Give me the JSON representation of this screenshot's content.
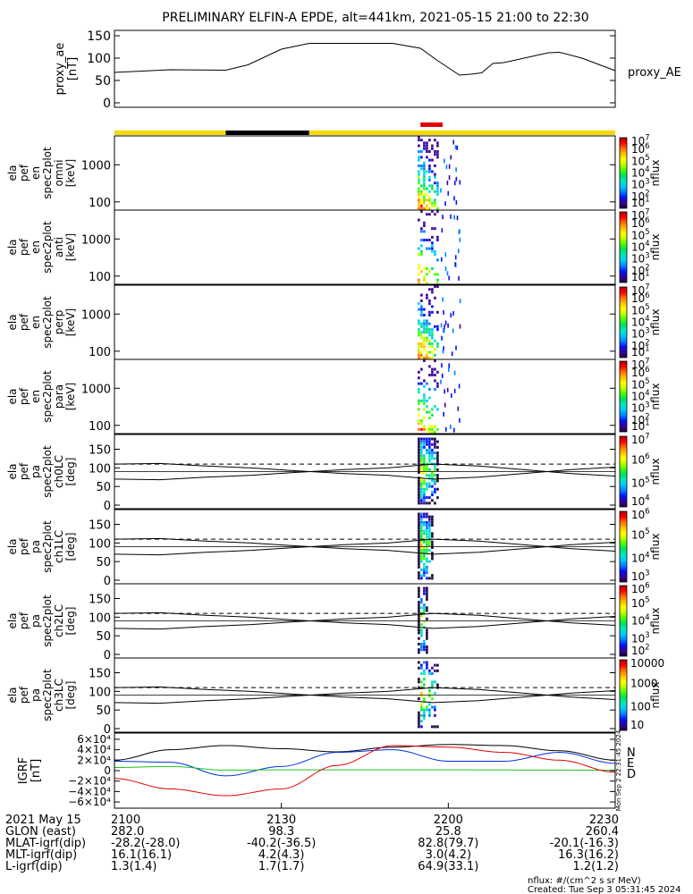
{
  "title": "PRELIMINARY ELFIN-A EPDE, alt=441km, 2021-05-15 21:00 to 22:30",
  "colors": {
    "yellow_bar": "#f5d800",
    "black_bar": "#000000",
    "red_marker": "#e00000",
    "line": "#000000",
    "N": "#0030e0",
    "E": "#20c020",
    "D": "#e00000"
  },
  "colormap": [
    "#1a003a",
    "#3a009a",
    "#0010ff",
    "#0080ff",
    "#00c8ff",
    "#00e8c0",
    "#00e060",
    "#40ff00",
    "#c0ff00",
    "#ffff00",
    "#ffc000",
    "#ff7000",
    "#ff0000",
    "#b00000"
  ],
  "footer": {
    "labels": [
      "2021 May 15",
      "GLON (east)",
      "MLAT-igrf(dip)",
      "MLT-igrf(dip)",
      "L-igrf(dip)"
    ],
    "times": [
      "2100",
      "2130",
      "2200",
      "2230"
    ],
    "glon": [
      "282.0",
      "98.3",
      "25.8",
      "260.4"
    ],
    "mlat": [
      "-28.2(-28.0)",
      "-40.2(-36.5)",
      "82.8(79.7)",
      "-20.1(-16.3)"
    ],
    "mlt": [
      "16.1(16.1)",
      "4.2(4.3)",
      "3.0(4.2)",
      "16.3(16.2)"
    ],
    "lshell": [
      "1.3(1.4)",
      "1.7(1.7)",
      "64.9(33.1)",
      "1.2(1.2)"
    ],
    "units_note": "nflux: #/(cm^2 s sr MeV)",
    "created": "Created: Tue Sep  3 05:31:45 2024",
    "side_stamp": "Mon Sep  2 22:31:45 2024"
  },
  "chart_data": [
    {
      "type": "line",
      "panel": "proxy_ae",
      "ylabel": [
        "proxy_ae",
        "[nT]"
      ],
      "legend": "proxy_AE",
      "ylim": [
        0,
        150
      ],
      "yticks": [
        0,
        50,
        100,
        150
      ],
      "x_minutes": [
        0,
        10,
        20,
        24,
        30,
        35,
        50,
        55,
        58,
        62,
        64,
        66,
        68,
        70,
        78,
        80,
        84,
        90
      ],
      "values": [
        68,
        74,
        73,
        85,
        120,
        133,
        133,
        122,
        95,
        62,
        64,
        67,
        88,
        90,
        112,
        113,
        100,
        72
      ]
    },
    {
      "type": "bar",
      "panel": "status_bar",
      "segments": [
        {
          "from": 0,
          "to": 20,
          "color": "yellow"
        },
        {
          "from": 20,
          "to": 35,
          "color": "black"
        },
        {
          "from": 35,
          "to": 90,
          "color": "yellow"
        }
      ],
      "marker": {
        "from": 55,
        "to": 59,
        "color": "red"
      }
    },
    {
      "type": "heatmap",
      "panel": "omni",
      "ylabel": [
        "ela",
        "pef",
        "en",
        "spec2plot",
        "omni",
        "[keV]"
      ],
      "y_scale": "log",
      "ylim": [
        60,
        6000
      ],
      "yticks": [
        100,
        1000
      ],
      "ytick_labels": [
        "100",
        "1000"
      ],
      "colorbar": {
        "label": "nflux",
        "ticks": [
          "10",
          "10",
          "10",
          "10",
          "10",
          "10",
          "10"
        ],
        "exponents": [
          "1",
          "2",
          "3",
          "4",
          "5",
          "6",
          "7"
        ]
      },
      "burst_minutes": [
        54.5,
        58.5
      ]
    },
    {
      "type": "heatmap",
      "panel": "anti",
      "ylabel": [
        "ela",
        "pef",
        "en",
        "spec2plot",
        "anti",
        "[keV]"
      ],
      "y_scale": "log",
      "ylim": [
        60,
        6000
      ],
      "yticks": [
        100,
        1000
      ],
      "ytick_labels": [
        "100",
        "1000"
      ],
      "colorbar": {
        "label": "nflux",
        "ticks": [
          "10",
          "10",
          "10",
          "10",
          "10",
          "10",
          "10"
        ],
        "exponents": [
          "1",
          "2",
          "3",
          "4",
          "5",
          "6",
          "7"
        ]
      },
      "burst_minutes": [
        54.5,
        58.5
      ]
    },
    {
      "type": "heatmap",
      "panel": "perp",
      "ylabel": [
        "ela",
        "pef",
        "en",
        "spec2plot",
        "perp",
        "[keV]"
      ],
      "y_scale": "log",
      "ylim": [
        60,
        6000
      ],
      "yticks": [
        100,
        1000
      ],
      "ytick_labels": [
        "100",
        "1000"
      ],
      "colorbar": {
        "label": "nflux",
        "ticks": [
          "10",
          "10",
          "10",
          "10",
          "10",
          "10",
          "10"
        ],
        "exponents": [
          "1",
          "2",
          "3",
          "4",
          "5",
          "6",
          "7"
        ]
      },
      "burst_minutes": [
        54.5,
        58.5
      ]
    },
    {
      "type": "heatmap",
      "panel": "para",
      "ylabel": [
        "ela",
        "pef",
        "en",
        "spec2plot",
        "para",
        "[keV]"
      ],
      "y_scale": "log",
      "ylim": [
        60,
        6000
      ],
      "yticks": [
        100,
        1000
      ],
      "ytick_labels": [
        "100",
        "1000"
      ],
      "colorbar": {
        "label": "nflux",
        "ticks": [
          "10",
          "10",
          "10",
          "10",
          "10",
          "10",
          "10"
        ],
        "exponents": [
          "1",
          "2",
          "3",
          "4",
          "5",
          "6",
          "7"
        ]
      },
      "burst_minutes": [
        54.5,
        58.5
      ]
    },
    {
      "type": "heatmap",
      "panel": "ch0LC",
      "ylabel": [
        "ela",
        "pef",
        "pa",
        "spec2plot",
        "ch0LC",
        "[deg]"
      ],
      "ylim": [
        0,
        180
      ],
      "yticks": [
        0,
        50,
        100,
        150
      ],
      "colorbar": {
        "label": "nflux",
        "ticks": [
          "10",
          "10",
          "10",
          "10"
        ],
        "exponents": [
          "4",
          "5",
          "6",
          "7"
        ]
      },
      "losscone_deg": [
        110,
        112,
        105,
        100,
        92,
        85,
        80,
        70,
        75,
        85,
        95,
        102
      ],
      "antilosscone_deg": [
        70,
        68,
        75,
        80,
        88,
        95,
        100,
        110,
        105,
        95,
        85,
        78
      ],
      "burst_minutes": [
        54.5,
        58.5
      ]
    },
    {
      "type": "heatmap",
      "panel": "ch1LC",
      "ylabel": [
        "ela",
        "pef",
        "pa",
        "spec2plot",
        "ch1LC",
        "[deg]"
      ],
      "ylim": [
        0,
        180
      ],
      "yticks": [
        0,
        50,
        100,
        150
      ],
      "colorbar": {
        "label": "nflux",
        "ticks": [
          "10",
          "10",
          "10",
          "10"
        ],
        "exponents": [
          "3",
          "4",
          "5",
          "6"
        ]
      },
      "losscone_deg": [
        110,
        112,
        105,
        100,
        92,
        85,
        80,
        70,
        75,
        85,
        95,
        102
      ],
      "antilosscone_deg": [
        70,
        68,
        75,
        80,
        88,
        95,
        100,
        110,
        105,
        95,
        85,
        78
      ],
      "burst_minutes": [
        54.5,
        57.5
      ]
    },
    {
      "type": "heatmap",
      "panel": "ch2LC",
      "ylabel": [
        "ela",
        "pef",
        "pa",
        "spec2plot",
        "ch2LC",
        "[deg]"
      ],
      "ylim": [
        0,
        180
      ],
      "yticks": [
        0,
        50,
        100,
        150
      ],
      "colorbar": {
        "label": "nflux",
        "ticks": [
          "10",
          "10",
          "10",
          "10",
          "10"
        ],
        "exponents": [
          "2",
          "3",
          "4",
          "5",
          "6"
        ]
      },
      "losscone_deg": [
        110,
        112,
        105,
        100,
        92,
        85,
        80,
        70,
        75,
        85,
        95,
        102
      ],
      "antilosscone_deg": [
        70,
        68,
        75,
        80,
        88,
        95,
        100,
        110,
        105,
        95,
        85,
        78
      ],
      "burst_minutes": [
        54.5,
        56.5
      ]
    },
    {
      "type": "heatmap",
      "panel": "ch3LC",
      "ylabel": [
        "ela",
        "pef",
        "pa",
        "spec2plot",
        "ch3LC",
        "[deg]"
      ],
      "ylim": [
        0,
        180
      ],
      "yticks": [
        0,
        50,
        100,
        150
      ],
      "colorbar": {
        "label": "nflux",
        "ticks": [
          "10",
          "100",
          "1000",
          "10000"
        ]
      },
      "losscone_deg": [
        110,
        112,
        105,
        100,
        92,
        85,
        80,
        70,
        75,
        85,
        95,
        102
      ],
      "antilosscone_deg": [
        70,
        68,
        75,
        80,
        88,
        95,
        100,
        110,
        105,
        95,
        85,
        78
      ],
      "burst_minutes": [
        54.5,
        58.5
      ]
    },
    {
      "type": "line",
      "panel": "IGRF",
      "ylabel": [
        "IGRF",
        "[nT]"
      ],
      "ylim": [
        -65000,
        65000
      ],
      "yticks": [
        -60000,
        -40000,
        -20000,
        0,
        20000,
        40000,
        60000
      ],
      "ytick_labels": [
        "−6×10⁴",
        "−4×10⁴",
        "−2×10⁴",
        "0",
        "2×10⁴",
        "4×10⁴",
        "6×10⁴"
      ],
      "legend": [
        "N",
        "E",
        "D"
      ],
      "x_minutes": [
        0,
        10,
        20,
        30,
        40,
        50,
        60,
        70,
        80,
        90
      ],
      "series": [
        {
          "name": "total",
          "values": [
            20000,
            40000,
            48000,
            42000,
            36000,
            45000,
            50000,
            48000,
            38000,
            20000
          ]
        },
        {
          "name": "N",
          "values": [
            18000,
            16000,
            -10000,
            8000,
            35000,
            40000,
            18000,
            18000,
            35000,
            14000
          ]
        },
        {
          "name": "E",
          "values": [
            6000,
            8000,
            1000,
            1500,
            1500,
            1500,
            1500,
            1200,
            1000,
            800
          ]
        },
        {
          "name": "D",
          "values": [
            -15000,
            -35000,
            -48000,
            -35000,
            10000,
            48000,
            45000,
            35000,
            20000,
            -3000
          ]
        }
      ]
    }
  ]
}
